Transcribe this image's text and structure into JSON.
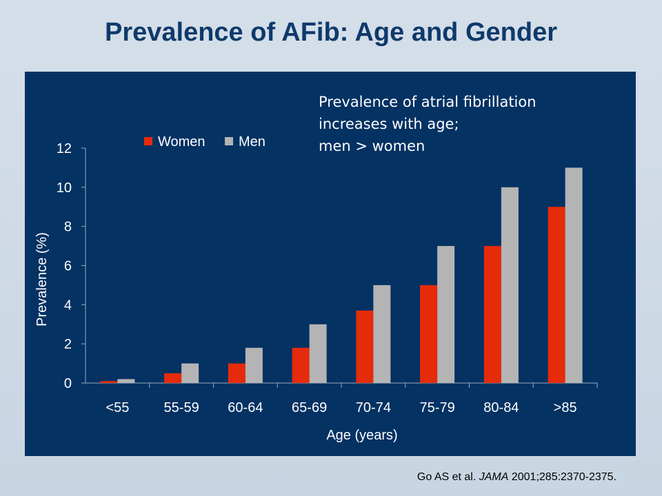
{
  "title": "Prevalence of AFib:  Age and Gender",
  "callout": [
    "Prevalence of atrial fibrillation",
    "increases with age;",
    "men > women"
  ],
  "citation": {
    "authors": "Go AS et al. ",
    "journal": "JAMA",
    "details": " 2001;285:2370-2375."
  },
  "colors": {
    "women": "#e62b0b",
    "men": "#b4b4b4",
    "panel": "#033263",
    "title": "#0e3a6b"
  },
  "chart_data": {
    "type": "bar",
    "categories": [
      "<55",
      "55-59",
      "60-64",
      "65-69",
      "70-74",
      "75-79",
      "80-84",
      ">85"
    ],
    "series": [
      {
        "name": "Women",
        "values": [
          0.1,
          0.5,
          1.0,
          1.8,
          3.7,
          5.0,
          7.0,
          9.0
        ]
      },
      {
        "name": "Men",
        "values": [
          0.2,
          1.0,
          1.8,
          3.0,
          5.0,
          7.0,
          10.0,
          11.0
        ]
      }
    ],
    "xlabel": "Age (years)",
    "ylabel": "Prevalence (%)",
    "ylim": [
      0,
      12
    ],
    "yticks": [
      0,
      2,
      4,
      6,
      8,
      10,
      12
    ],
    "legend": "top-left",
    "grid": false
  }
}
